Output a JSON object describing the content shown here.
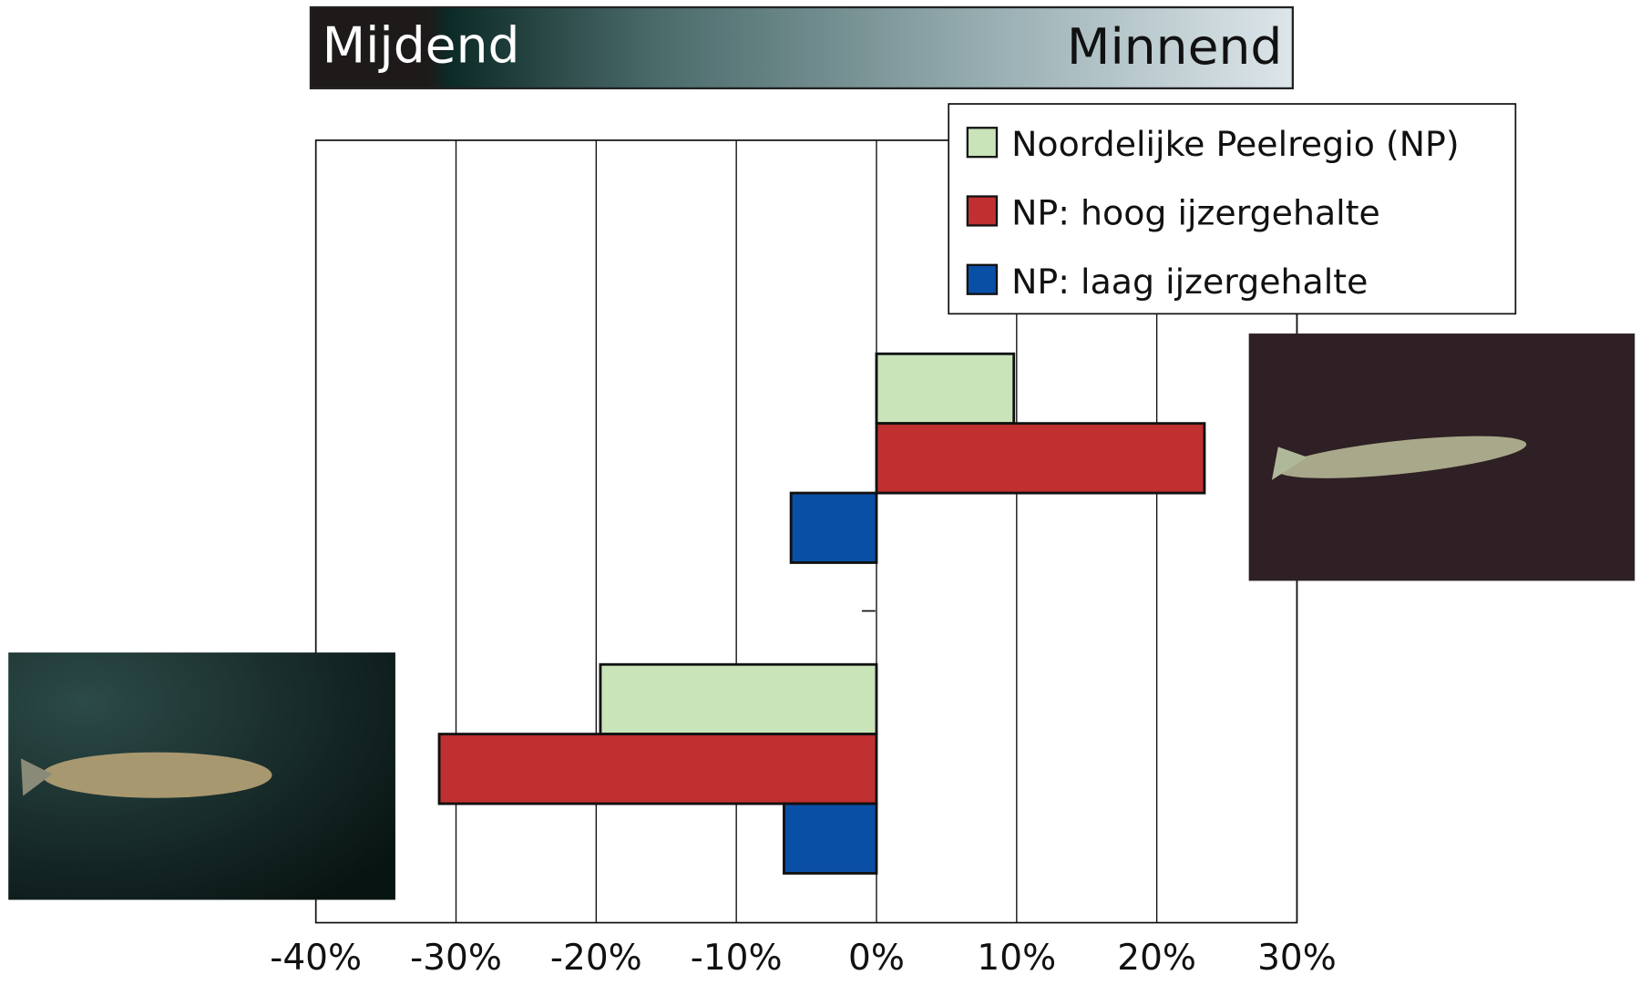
{
  "chart_data": {
    "type": "hbar",
    "banner_left": "Mijdend",
    "banner_right": "Minnend",
    "categories": [
      null,
      null
    ],
    "series": [
      {
        "name": "Noordelijke Peelregio (NP)",
        "color": "#c8e4b8",
        "values": [
          9.8,
          -19.7
        ]
      },
      {
        "name": "NP: hoog ijzergehalte",
        "color": "#c03030",
        "values": [
          23.4,
          -31.2
        ]
      },
      {
        "name": "NP: laag ijzergehalte",
        "color": "#0a4fa6",
        "values": [
          -6.1,
          -6.6
        ]
      }
    ],
    "xlim": [
      -40,
      30
    ],
    "xticks": [
      {
        "value": -40,
        "label": "-40%"
      },
      {
        "value": -30,
        "label": "-30%"
      },
      {
        "value": -20,
        "label": "-20%"
      },
      {
        "value": -10,
        "label": "-10%"
      },
      {
        "value": 0,
        "label": "0%"
      },
      {
        "value": 10,
        "label": "10%"
      },
      {
        "value": 20,
        "label": "20%"
      },
      {
        "value": 30,
        "label": "30%"
      }
    ],
    "grid": true,
    "legend": "upper right"
  }
}
